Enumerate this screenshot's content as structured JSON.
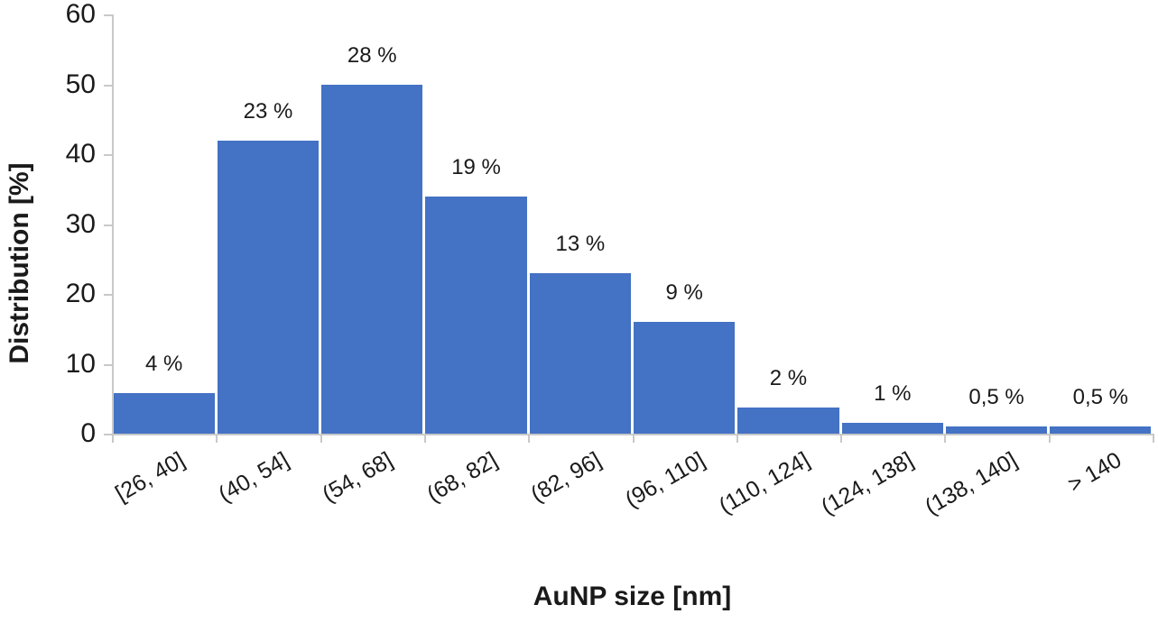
{
  "chart_data": {
    "type": "bar",
    "subtype": "histogram",
    "title": "",
    "xlabel": "AuNP size [nm]",
    "ylabel": "Distribution [%]",
    "ylim": [
      0,
      60
    ],
    "yticks": [
      0,
      10,
      20,
      30,
      40,
      50,
      60
    ],
    "grid": false,
    "legend": "none",
    "categories": [
      "[26, 40]",
      "(40, 54]",
      "(54, 68]",
      "(68, 82]",
      "(82, 96]",
      "(96, 110]",
      "(110, 124]",
      "(124, 138]",
      "(138, 140]",
      "> 140"
    ],
    "bar_labels": [
      "4 %",
      "23 %",
      "28 %",
      "19 %",
      "13 %",
      "9 %",
      "2 %",
      "1 %",
      "0,5 %",
      "0,5 %"
    ],
    "values_percent": [
      4,
      23,
      28,
      19,
      13,
      9,
      2,
      1,
      0.5,
      0.5
    ],
    "bar_heights_axis_units": [
      5.8,
      42,
      50,
      34,
      23,
      16,
      3.7,
      1.5,
      1,
      1
    ],
    "colors": {
      "bar": "#4472C4",
      "axis": "#C9C9C9",
      "text": "#1A1A1A",
      "background": "#FFFFFF"
    }
  }
}
